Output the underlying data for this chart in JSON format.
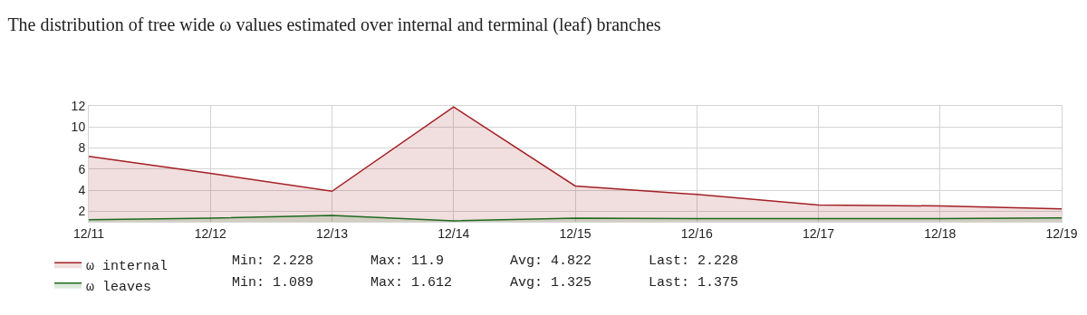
{
  "chart_data": {
    "type": "area",
    "title": "The distribution of tree wide ω values estimated over internal and terminal (leaf) branches",
    "categories": [
      "12/11",
      "12/12",
      "12/13",
      "12/14",
      "12/15",
      "12/16",
      "12/17",
      "12/18",
      "12/19"
    ],
    "series": [
      {
        "name": "ω internal",
        "color": "#a31f24",
        "values": [
          7.2,
          5.6,
          3.9,
          11.9,
          4.4,
          3.6,
          2.6,
          2.5,
          2.228
        ]
      },
      {
        "name": "ω leaves",
        "color": "#1e6b1e",
        "values": [
          1.2,
          1.35,
          1.612,
          1.089,
          1.35,
          1.3,
          1.3,
          1.3,
          1.375
        ]
      }
    ],
    "ylim": [
      1,
      12
    ],
    "yticks": [
      2,
      4,
      6,
      8,
      10,
      12
    ],
    "grid": true,
    "legend": "bottom",
    "annotations": [
      "Min: 2.228",
      "Max: 11.9",
      "Avg: 4.822",
      "Last: 2.228",
      "Min: 1.089",
      "Max: 1.612",
      "Avg: 1.325",
      "Last: 1.375"
    ]
  }
}
